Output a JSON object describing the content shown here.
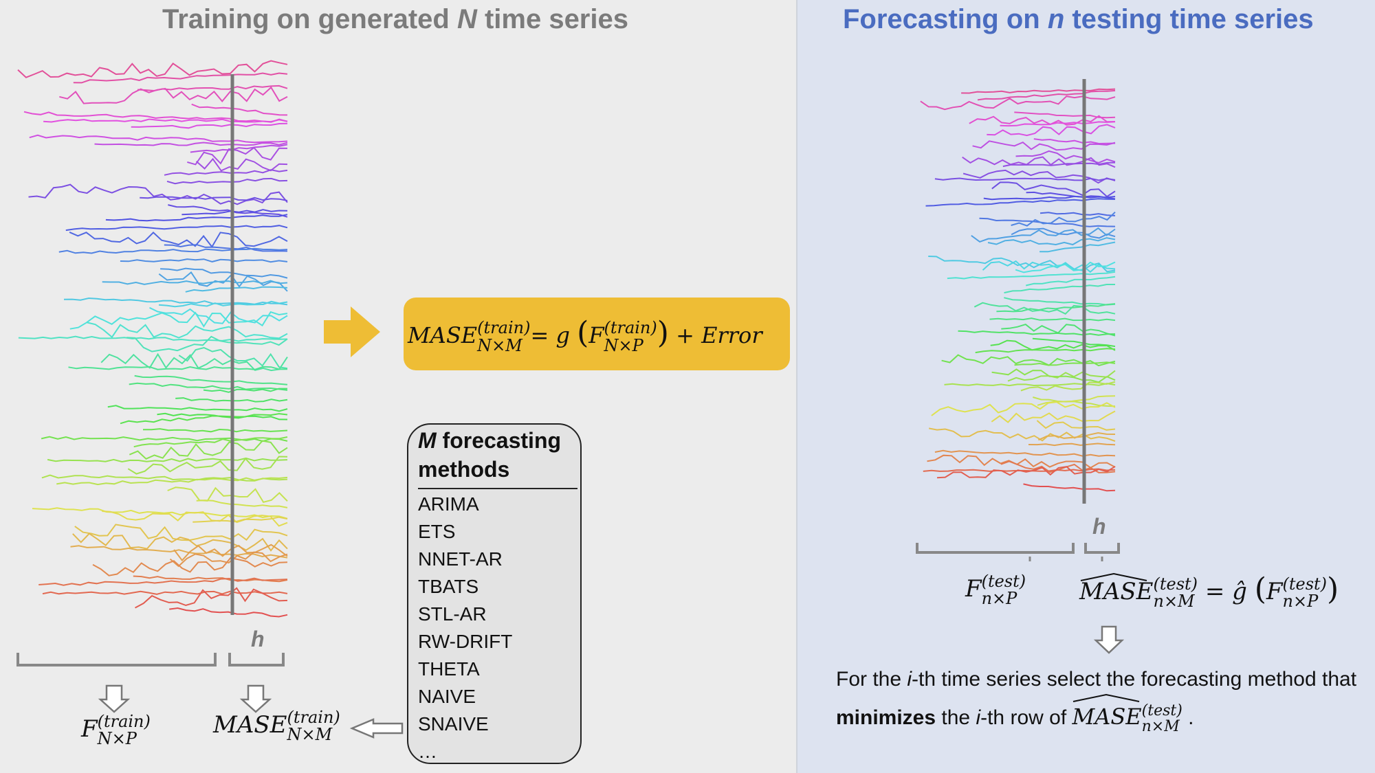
{
  "left_panel": {
    "title_prefix": "Training on generated ",
    "title_var": "N",
    "title_suffix": " time series",
    "h_label": "h",
    "features_label": {
      "base": "F",
      "sup": "(train)",
      "sub": "N×P"
    },
    "mase_label": {
      "base": "MASE",
      "sup": "(train)",
      "sub": "N×M"
    }
  },
  "formula": {
    "lhs": {
      "base": "MASE",
      "sup": "(train)",
      "sub": "N×M"
    },
    "eq": "=",
    "fn": "g",
    "arg": {
      "base": "F",
      "sup": "(train)",
      "sub": "N×P"
    },
    "tail": "+ Error"
  },
  "methods": {
    "heading_var": "M",
    "heading_rest_1": " forecasting",
    "heading_rest_2": "methods",
    "items": [
      "ARIMA",
      "ETS",
      "NNET-AR",
      "TBATS",
      "STL-AR",
      "RW-DRIFT",
      "THETA",
      "NAIVE",
      "SNAIVE",
      "…"
    ]
  },
  "right_panel": {
    "title_prefix": "Forecasting on ",
    "title_var": "n",
    "title_suffix": " testing time series",
    "h_label": "h",
    "features_label": {
      "base": "F",
      "sup": "(test)",
      "sub": "n×P"
    },
    "estimate": {
      "lhs_base": "MASE",
      "lhs_sup": "(test)",
      "lhs_sub": "n×M",
      "eq": "=",
      "fn": "ĝ",
      "arg": {
        "base": "F",
        "sup": "(test)",
        "sub": "n×P"
      }
    },
    "conclusion": {
      "p1": "For the ",
      "i1": "i",
      "p2": "-th time series select the forecasting method that ",
      "bold": "minimizes",
      "p3": " the ",
      "i2": "i",
      "p4": "-th row of ",
      "m_base": "MASE",
      "m_sup": "(test)",
      "m_sub": "n×M",
      "end": "."
    }
  },
  "colors": {
    "left_bg": "#ececec",
    "right_bg": "#dde3f0",
    "title_left": "#7b7b7b",
    "title_right": "#4a6cc0",
    "formula_bg": "#eebd35",
    "arrow": "#eebd35",
    "bracket": "#888888"
  }
}
